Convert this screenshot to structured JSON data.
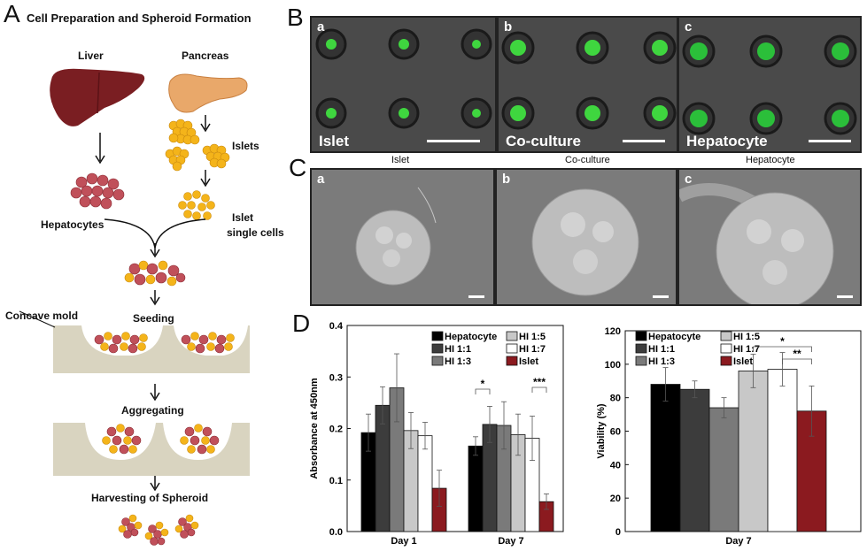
{
  "panelA": {
    "letter": "A",
    "title": "Cell Preparation and Spheroid Formation",
    "liver": "Liver",
    "pancreas": "Pancreas",
    "islets": "Islets",
    "hepatocytes": "Hepatocytes",
    "islet_single_cells_1": "Islet",
    "islet_single_cells_2": "single cells",
    "seeding": "Seeding",
    "concave_mold": "Concave mold",
    "aggregating": "Aggregating",
    "harvesting": "Harvesting of Spheroid",
    "colors": {
      "liver": "#7a1e22",
      "pancreas": "#e9a86a",
      "islet": "#f4b41a",
      "hepatocyte": "#c0505a",
      "mold": "#d9d4c0"
    }
  },
  "panelB": {
    "letter": "B",
    "tiles": [
      {
        "sub": "a",
        "label": "Islet"
      },
      {
        "sub": "b",
        "label": "Co-culture"
      },
      {
        "sub": "c",
        "label": "Hepatocyte"
      }
    ]
  },
  "panelC": {
    "letter": "C",
    "headers": [
      "Islet",
      "Co-culture",
      "Hepatocyte"
    ],
    "subs": [
      "a",
      "b",
      "c"
    ]
  },
  "panelD": {
    "letter": "D"
  },
  "chart_data": [
    {
      "type": "bar",
      "ylabel": "Absorbance at 450nm",
      "xlabel": "",
      "ylim": [
        0,
        0.4
      ],
      "yticks": [
        "0.0",
        "0.1",
        "0.2",
        "0.3",
        "0.4"
      ],
      "categories": [
        "Day 1",
        "Day 7"
      ],
      "series": [
        {
          "name": "Hepatocyte",
          "color": "#000000",
          "values": [
            0.192,
            0.166
          ],
          "errors": [
            0.036,
            0.018
          ]
        },
        {
          "name": "HI 1:1",
          "color": "#3c3c3c",
          "values": [
            0.245,
            0.208
          ],
          "errors": [
            0.036,
            0.035
          ]
        },
        {
          "name": "HI 1:3",
          "color": "#7a7a7a",
          "values": [
            0.279,
            0.206
          ],
          "errors": [
            0.066,
            0.046
          ]
        },
        {
          "name": "HI 1:5",
          "color": "#c8c8c8",
          "values": [
            0.196,
            0.188
          ],
          "errors": [
            0.035,
            0.04
          ]
        },
        {
          "name": "HI 1:7",
          "color": "#ffffff",
          "values": [
            0.186,
            0.181
          ],
          "errors": [
            0.026,
            0.043
          ]
        },
        {
          "name": "Islet",
          "color": "#8b1a1f",
          "values": [
            0.084,
            0.058
          ],
          "errors": [
            0.035,
            0.015
          ]
        }
      ],
      "legend_placement": "top-right",
      "annotations": [
        {
          "text": "*",
          "group": 1,
          "from": 0,
          "to": 1
        },
        {
          "text": "***",
          "group": 1,
          "from": 4,
          "to": 5
        }
      ]
    },
    {
      "type": "bar",
      "ylabel": "Viability (%)",
      "xlabel": "",
      "ylim": [
        0,
        120
      ],
      "yticks": [
        "0",
        "20",
        "40",
        "60",
        "80",
        "100",
        "120"
      ],
      "categories": [
        "Day 7"
      ],
      "series": [
        {
          "name": "Hepatocyte",
          "color": "#000000",
          "values": [
            88
          ],
          "errors": [
            10
          ]
        },
        {
          "name": "HI 1:1",
          "color": "#3c3c3c",
          "values": [
            85
          ],
          "errors": [
            5
          ]
        },
        {
          "name": "HI 1:3",
          "color": "#7a7a7a",
          "values": [
            74
          ],
          "errors": [
            6
          ]
        },
        {
          "name": "HI 1:5",
          "color": "#c8c8c8",
          "values": [
            96
          ],
          "errors": [
            10
          ]
        },
        {
          "name": "HI 1:7",
          "color": "#ffffff",
          "values": [
            97
          ],
          "errors": [
            10
          ]
        },
        {
          "name": "Islet",
          "color": "#8b1a1f",
          "values": [
            72
          ],
          "errors": [
            15
          ]
        }
      ],
      "legend_placement": "top",
      "annotations": [
        {
          "text": "*",
          "group": 0,
          "from": 3,
          "to": 5
        },
        {
          "text": "**",
          "group": 0,
          "from": 4,
          "to": 5
        }
      ]
    }
  ]
}
